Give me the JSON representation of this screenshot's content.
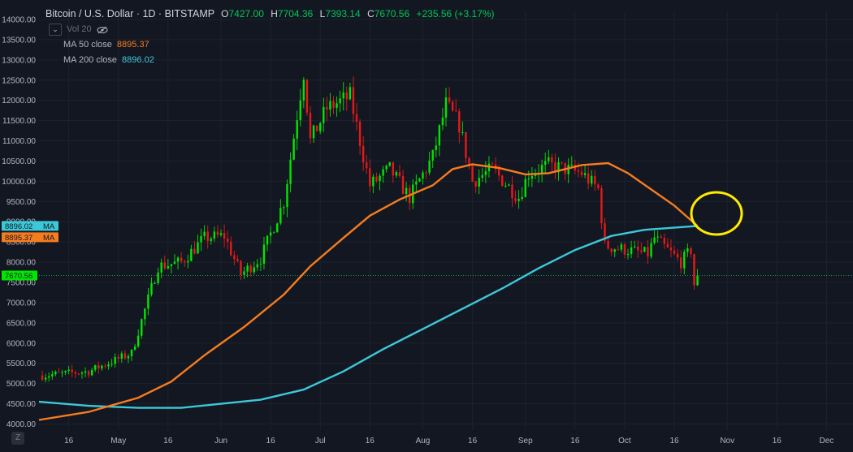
{
  "header": {
    "symbol_title": "Bitcoin / U.S. Dollar · 1D · BITSTAMP",
    "open_key": "O",
    "open": "7427.00",
    "high_key": "H",
    "high": "7704.36",
    "low_key": "L",
    "low": "7393.14",
    "close_key": "C",
    "close": "7670.56",
    "change": "+235.56 (+3.17%)"
  },
  "indicators": {
    "vol_label": "Vol 20",
    "ma50_label": "MA  50 close",
    "ma50_value": "8895.37",
    "ma200_label": "MA  200 close",
    "ma200_value": "8896.02"
  },
  "price_tags": {
    "ma200": "8896.02",
    "ma200_suffix": "MA",
    "ma50": "8895.37",
    "ma50_suffix": "MA",
    "last": "7670.56"
  },
  "colors": {
    "background": "#131722",
    "up": "#00e600",
    "down": "#e61919",
    "ma50": "#f57c1f",
    "ma200": "#3cc8d8",
    "annotation": "#ffeb00"
  },
  "icons": {
    "vol_toggle": "chevron-down-icon",
    "visibility": "eye-crossed-icon",
    "bottom_left": "z-icon"
  },
  "bottom_icon_label": "Z",
  "chart_data": {
    "type": "candlestick",
    "title": "Bitcoin / U.S. Dollar · 1D · BITSTAMP",
    "ylim": [
      3850,
      14200
    ],
    "y_ticks": [
      "14000.00",
      "13500.00",
      "13000.00",
      "12500.00",
      "12000.00",
      "11500.00",
      "11000.00",
      "10500.00",
      "10000.00",
      "9500.00",
      "9000.00",
      "8500.00",
      "8000.00",
      "7500.00",
      "7000.00",
      "6500.00",
      "6000.00",
      "5500.00",
      "5000.00",
      "4500.00",
      "4000.00"
    ],
    "x_ticks": [
      "16",
      "May",
      "16",
      "Jun",
      "16",
      "Jul",
      "16",
      "Aug",
      "16",
      "Sep",
      "16",
      "Oct",
      "16",
      "Nov",
      "16",
      "Dec"
    ],
    "x_range": [
      "2019-04-07",
      "2019-12-09"
    ],
    "grid": true,
    "last_price_line": 7670.56,
    "ohlc_key_points": [
      [
        "2019-04-08",
        5200
      ],
      [
        "2019-04-22",
        5300
      ],
      [
        "2019-05-05",
        5750
      ],
      [
        "2019-05-13",
        7900
      ],
      [
        "2019-05-20",
        8000
      ],
      [
        "2019-05-27",
        8600
      ],
      [
        "2019-06-02",
        8650
      ],
      [
        "2019-06-07",
        7700
      ],
      [
        "2019-06-13",
        8100
      ],
      [
        "2019-06-20",
        9500
      ],
      [
        "2019-06-26",
        12700
      ],
      [
        "2019-06-28",
        11000
      ],
      [
        "2019-07-03",
        11800
      ],
      [
        "2019-07-10",
        12100
      ],
      [
        "2019-07-16",
        9900
      ],
      [
        "2019-07-22",
        10300
      ],
      [
        "2019-07-28",
        9600
      ],
      [
        "2019-08-04",
        10600
      ],
      [
        "2019-08-08",
        11900
      ],
      [
        "2019-08-12",
        11400
      ],
      [
        "2019-08-16",
        10000
      ],
      [
        "2019-08-22",
        10300
      ],
      [
        "2019-08-30",
        9600
      ],
      [
        "2019-09-02",
        10200
      ],
      [
        "2019-09-08",
        10400
      ],
      [
        "2019-09-18",
        10200
      ],
      [
        "2019-09-23",
        9800
      ],
      [
        "2019-09-25",
        8400
      ],
      [
        "2019-10-02",
        8300
      ],
      [
        "2019-10-08",
        8200
      ],
      [
        "2019-10-10",
        8600
      ],
      [
        "2019-10-18",
        8000
      ],
      [
        "2019-10-21",
        8300
      ],
      [
        "2019-10-22",
        7450
      ],
      [
        "2019-10-23",
        7670
      ]
    ],
    "series": [
      {
        "name": "MA 50 close",
        "color": "#f57c1f",
        "points": [
          [
            "2019-04-07",
            4100
          ],
          [
            "2019-04-22",
            4300
          ],
          [
            "2019-05-07",
            4650
          ],
          [
            "2019-05-17",
            5050
          ],
          [
            "2019-05-27",
            5700
          ],
          [
            "2019-06-08",
            6400
          ],
          [
            "2019-06-20",
            7200
          ],
          [
            "2019-06-28",
            7900
          ],
          [
            "2019-07-08",
            8600
          ],
          [
            "2019-07-16",
            9150
          ],
          [
            "2019-07-25",
            9550
          ],
          [
            "2019-08-04",
            9900
          ],
          [
            "2019-08-10",
            10300
          ],
          [
            "2019-08-16",
            10420
          ],
          [
            "2019-08-24",
            10330
          ],
          [
            "2019-09-01",
            10170
          ],
          [
            "2019-09-08",
            10200
          ],
          [
            "2019-09-18",
            10400
          ],
          [
            "2019-09-26",
            10450
          ],
          [
            "2019-10-02",
            10200
          ],
          [
            "2019-10-09",
            9800
          ],
          [
            "2019-10-16",
            9400
          ],
          [
            "2019-10-23",
            8895
          ]
        ]
      },
      {
        "name": "MA 200 close",
        "color": "#3cc8d8",
        "points": [
          [
            "2019-04-07",
            4550
          ],
          [
            "2019-04-22",
            4450
          ],
          [
            "2019-05-07",
            4400
          ],
          [
            "2019-05-20",
            4400
          ],
          [
            "2019-06-01",
            4500
          ],
          [
            "2019-06-13",
            4600
          ],
          [
            "2019-06-26",
            4850
          ],
          [
            "2019-07-08",
            5300
          ],
          [
            "2019-07-20",
            5850
          ],
          [
            "2019-08-01",
            6350
          ],
          [
            "2019-08-13",
            6850
          ],
          [
            "2019-08-25",
            7350
          ],
          [
            "2019-09-05",
            7850
          ],
          [
            "2019-09-16",
            8300
          ],
          [
            "2019-09-27",
            8650
          ],
          [
            "2019-10-07",
            8800
          ],
          [
            "2019-10-23",
            8896
          ]
        ]
      }
    ]
  }
}
